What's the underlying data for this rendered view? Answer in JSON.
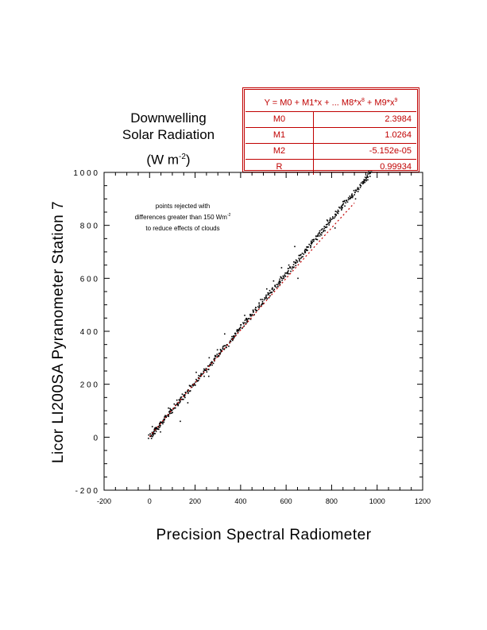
{
  "chart_data": {
    "type": "scatter",
    "title_lines": [
      "Downwelling",
      "Solar Radiation"
    ],
    "title_unit": "(W m",
    "title_unit_exp": "-2",
    "title_unit_close": ")",
    "xlabel": "Precision Spectral Radiometer",
    "ylabel": "Licor LI200SA Pyranometer Station 7",
    "xlim": [
      -200,
      1200
    ],
    "ylim": [
      -200,
      1000
    ],
    "xticks": [
      -200,
      0,
      200,
      400,
      600,
      800,
      1000,
      1200
    ],
    "yticks": [
      -200,
      0,
      200,
      400,
      600,
      800,
      1000
    ],
    "xtick_labels": [
      "-200",
      "0",
      "200",
      "400",
      "600",
      "800",
      "1000",
      "1200"
    ],
    "ytick_labels": [
      "- 2 0 0",
      "0",
      "2 0 0",
      "4 0 0",
      "6 0 0",
      "8 0 0",
      "1 0 0 0"
    ],
    "annotation_lines": [
      "points rejected with",
      "differences greater than 150 Wm",
      "to reduce effects of clouds"
    ],
    "annotation_exp": "-2",
    "fit": {
      "equation_text": "Y = M0 + M1*x + ... M8*x",
      "equation_exp1": "8",
      "equation_mid": " + M9*x",
      "equation_exp2": "9",
      "params": [
        {
          "name": "M0",
          "value": "2.3984"
        },
        {
          "name": "M1",
          "value": "1.0264"
        },
        {
          "name": "M2",
          "value": "-5.152e-05"
        },
        {
          "name": "R",
          "value": "0.99934"
        }
      ],
      "m0": 2.3984,
      "m1": 1.0264,
      "m2": -5.152e-05,
      "x_range": [
        0,
        900
      ],
      "color": "#c00000"
    },
    "series": [
      {
        "name": "observations",
        "color": "#000000",
        "x": [
          2,
          6,
          10,
          14,
          18,
          22,
          26,
          30,
          35,
          40,
          45,
          50,
          55,
          60,
          66,
          72,
          78,
          84,
          90,
          96,
          102,
          108,
          115,
          122,
          129,
          136,
          143,
          150,
          158,
          166,
          174,
          182,
          190,
          198,
          206,
          214,
          222,
          230,
          238,
          246,
          254,
          262,
          270,
          278,
          286,
          294,
          302,
          310,
          318,
          326,
          334,
          342,
          350,
          358,
          366,
          374,
          382,
          390,
          398,
          406,
          414,
          422,
          430,
          438,
          446,
          454,
          462,
          470,
          478,
          486,
          494,
          502,
          510,
          518,
          526,
          534,
          542,
          550,
          558,
          566,
          574,
          582,
          590,
          598,
          606,
          614,
          622,
          630,
          638,
          646,
          654,
          662,
          670,
          678,
          686,
          694,
          702,
          710,
          718,
          726,
          734,
          742,
          750,
          758,
          766,
          774,
          782,
          790,
          798,
          806,
          814,
          822,
          830,
          838,
          846,
          854,
          862,
          870,
          878,
          886,
          894,
          902,
          910,
          918,
          926,
          934,
          940,
          946,
          952,
          958,
          964,
          970
        ],
        "y": [
          3,
          8,
          12,
          16,
          21,
          25,
          29,
          33,
          38,
          44,
          49,
          54,
          58,
          64,
          70,
          77,
          83,
          89,
          95,
          101,
          107,
          113,
          121,
          127,
          135,
          141,
          148,
          155,
          163,
          171,
          180,
          188,
          196,
          204,
          213,
          221,
          229,
          237,
          245,
          254,
          262,
          270,
          278,
          286,
          295,
          303,
          311,
          319,
          327,
          335,
          344,
          351,
          360,
          368,
          376,
          385,
          393,
          401,
          409,
          417,
          425,
          434,
          442,
          450,
          458,
          467,
          475,
          483,
          492,
          500,
          508,
          516,
          525,
          533,
          540,
          549,
          557,
          566,
          574,
          582,
          590,
          599,
          607,
          615,
          623,
          631,
          640,
          648,
          656,
          664,
          672,
          680,
          689,
          697,
          705,
          713,
          721,
          730,
          738,
          746,
          754,
          763,
          771,
          779,
          787,
          796,
          804,
          812,
          820,
          828,
          837,
          845,
          853,
          861,
          869,
          877,
          886,
          894,
          902,
          910,
          918,
          927,
          935,
          943,
          951,
          959,
          965,
          970,
          975,
          982,
          988,
          995
        ],
        "outliers_x": [
          12,
          48,
          83,
          135,
          168,
          205,
          240,
          262,
          298,
          330,
          362,
          395,
          418,
          455,
          488,
          515,
          545,
          580,
          612,
          638,
          652,
          690,
          710,
          748,
          780,
          815,
          850,
          880,
          905,
          930,
          40,
          120,
          260,
          520,
          600
        ],
        "outliers_y": [
          40,
          20,
          110,
          60,
          130,
          245,
          230,
          300,
          330,
          390,
          380,
          410,
          460,
          480,
          520,
          560,
          590,
          640,
          650,
          720,
          600,
          705,
          740,
          760,
          820,
          790,
          890,
          910,
          900,
          960,
          30,
          140,
          230,
          545,
          620
        ]
      }
    ]
  }
}
